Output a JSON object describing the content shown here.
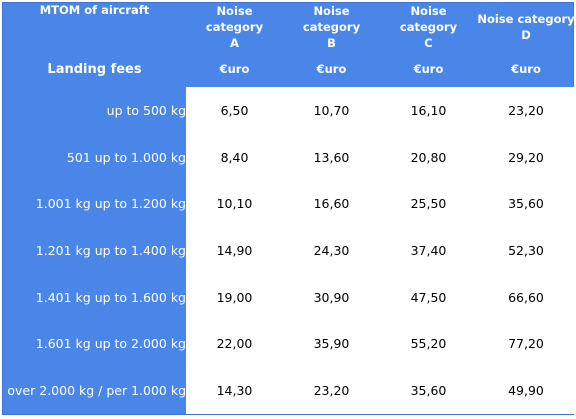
{
  "header": {
    "mtom_label": "MTOM of aircraft",
    "landing_label": "Landing fees",
    "categories": [
      {
        "line1": "Noise category",
        "line2": "A",
        "unit": "€uro"
      },
      {
        "line1": "Noise category",
        "line2": "B",
        "unit": "€uro"
      },
      {
        "line1": "Noise category",
        "line2": "C",
        "unit": "€uro"
      },
      {
        "line1": "Noise category",
        "line2": "D",
        "unit": "€uro"
      }
    ]
  },
  "rows": [
    {
      "label": "up to 500 kg",
      "values": [
        "6,50",
        "10,70",
        "16,10",
        "23,20"
      ]
    },
    {
      "label": "501 up to 1.000 kg",
      "values": [
        "8,40",
        "13,60",
        "20,80",
        "29,20"
      ]
    },
    {
      "label": "1.001 kg up to 1.200 kg",
      "values": [
        "10,10",
        "16,60",
        "25,50",
        "35,60"
      ]
    },
    {
      "label": "1.201 kg up to 1.400 kg",
      "values": [
        "14,90",
        "24,30",
        "37,40",
        "52,30"
      ]
    },
    {
      "label": "1.401 kg up to 1.600 kg",
      "values": [
        "19,00",
        "30,90",
        "47,50",
        "66,60"
      ]
    },
    {
      "label": "1.601 kg up to 2.000 kg",
      "values": [
        "22,00",
        "35,90",
        "55,20",
        "77,20"
      ]
    },
    {
      "label": "over 2.000 kg / per 1.000 kg",
      "values": [
        "14,30",
        "23,20",
        "35,60",
        "49,90"
      ]
    }
  ],
  "colors": {
    "header_bg": "#4a86e8",
    "cell_bg": "#ffffff"
  }
}
